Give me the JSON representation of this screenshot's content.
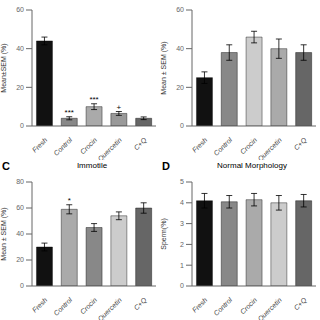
{
  "chart_data": [
    {
      "type": "bar",
      "ylabel": "Mean±SEM (%)",
      "categories": [
        "Fresh",
        "Control",
        "Crocin",
        "Quercetin",
        "C+Q"
      ],
      "values": [
        44,
        4,
        10,
        6.5,
        4
      ],
      "errors": [
        2,
        0.8,
        1.5,
        1,
        0.7
      ],
      "colors": [
        "#111111",
        "#888888",
        "#aaaaaa",
        "#999999",
        "#666666"
      ],
      "ylim": [
        0,
        60
      ],
      "yticks": [
        0,
        20,
        40,
        60
      ],
      "annotations": [
        {
          "category": "Control",
          "text": "***"
        },
        {
          "category": "Crocin",
          "text": "***"
        },
        {
          "category": "Quercetin",
          "text": "+"
        }
      ]
    },
    {
      "type": "bar",
      "ylabel": "Mean ± SEM (%)",
      "categories": [
        "Fresh",
        "Control",
        "Crocin",
        "Quercetin",
        "C+Q"
      ],
      "values": [
        25,
        38,
        46,
        40,
        38
      ],
      "errors": [
        3,
        4,
        3,
        5,
        4
      ],
      "colors": [
        "#111111",
        "#888888",
        "#cccccc",
        "#aaaaaa",
        "#666666"
      ],
      "ylim": [
        0,
        60
      ],
      "yticks": [
        0,
        20,
        40,
        60
      ]
    },
    {
      "type": "bar",
      "title": "Immotile",
      "ylabel": "Mean ± SEM (%)",
      "categories": [
        "Fresh",
        "Control",
        "Crocin",
        "Quercetin",
        "C+Q"
      ],
      "values": [
        30,
        59,
        45,
        54,
        60
      ],
      "errors": [
        3,
        3.5,
        3,
        3,
        4
      ],
      "colors": [
        "#111111",
        "#aaaaaa",
        "#888888",
        "#cccccc",
        "#666666"
      ],
      "ylim": [
        0,
        80
      ],
      "yticks": [
        0,
        20,
        40,
        60,
        80
      ],
      "annotations": [
        {
          "text": "C"
        },
        {
          "category": "Control",
          "text": "*"
        }
      ]
    },
    {
      "type": "bar",
      "title": "Normal Morphology",
      "ylabel": "Sperm(%)",
      "categories": [
        "Fresh",
        "Control",
        "Crocin",
        "Quercetin",
        "C+Q"
      ],
      "values": [
        4.1,
        4.05,
        4.15,
        4.0,
        4.1
      ],
      "errors": [
        0.35,
        0.3,
        0.3,
        0.35,
        0.3
      ],
      "colors": [
        "#111111",
        "#888888",
        "#aaaaaa",
        "#cccccc",
        "#666666"
      ],
      "ylim": [
        0,
        5
      ],
      "yticks": [
        0,
        1,
        2,
        3,
        4,
        5
      ],
      "annotations": [
        {
          "text": "D"
        }
      ]
    }
  ]
}
